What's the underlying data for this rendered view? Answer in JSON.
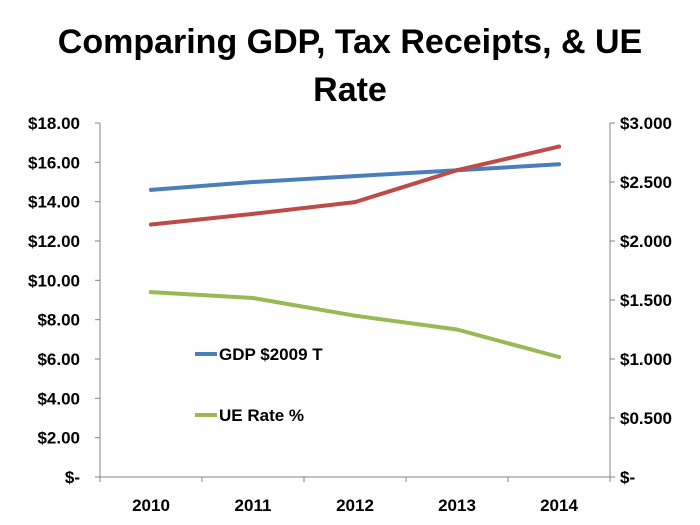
{
  "chart_data": {
    "type": "line",
    "title_lines": [
      "Comparing GDP, Tax Receipts, & UE",
      "Rate"
    ],
    "categories": [
      "2010",
      "2011",
      "2012",
      "2013",
      "2014"
    ],
    "y_left": {
      "min": 0,
      "max": 18,
      "step": 2,
      "tick_labels": [
        "$-",
        "$2.00",
        "$4.00",
        "$6.00",
        "$8.00",
        "$10.00",
        "$12.00",
        "$14.00",
        "$16.00",
        "$18.00"
      ]
    },
    "y_right": {
      "min": 0,
      "max": 3,
      "step": 0.5,
      "tick_labels": [
        "$-",
        "$0.500",
        "$1.000",
        "$1.500",
        "$2.000",
        "$2.500",
        "$3.000"
      ]
    },
    "series": [
      {
        "name": "GDP $2009 T",
        "axis": "left",
        "color": "#4a7ebb",
        "values": [
          14.6,
          15.0,
          15.3,
          15.6,
          15.9
        ],
        "in_legend": true
      },
      {
        "name": "Tax Receipts",
        "axis": "right",
        "color": "#be4b48",
        "values": [
          2.14,
          2.23,
          2.33,
          2.6,
          2.8
        ],
        "in_legend": false
      },
      {
        "name": "UE Rate %",
        "axis": "left",
        "color": "#98b954",
        "values": [
          9.4,
          9.1,
          8.2,
          7.5,
          6.1
        ],
        "in_legend": true
      }
    ]
  }
}
